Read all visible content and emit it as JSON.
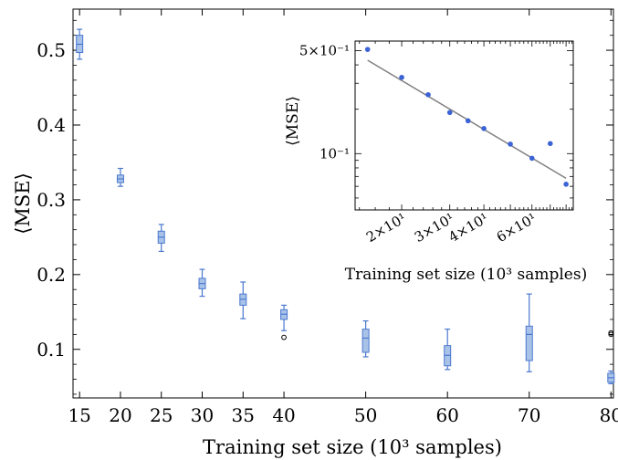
{
  "chart_data": [
    {
      "type": "box",
      "xlabel": "Training set size (10³ samples)",
      "ylabel": "⟨MSE⟩",
      "xlim": [
        14.2,
        80.3
      ],
      "ylim": [
        0.035,
        0.555
      ],
      "x_ticks": [
        15,
        20,
        25,
        30,
        35,
        40,
        50,
        60,
        70,
        80
      ],
      "y_ticks": [
        0.1,
        0.2,
        0.3,
        0.4,
        0.5
      ],
      "y_tick_labels": [
        "0.1",
        "0.2",
        "0.3",
        "0.4",
        "0.5"
      ],
      "box_color": "#a9c3e8",
      "edge_color": "#4a78cf",
      "boxes": [
        {
          "x": 15,
          "whisker_low": 0.488,
          "q1": 0.497,
          "median": 0.508,
          "q3": 0.52,
          "whisker_high": 0.528,
          "outliers": []
        },
        {
          "x": 20,
          "whisker_low": 0.318,
          "q1": 0.323,
          "median": 0.328,
          "q3": 0.333,
          "whisker_high": 0.342,
          "outliers": []
        },
        {
          "x": 25,
          "whisker_low": 0.231,
          "q1": 0.242,
          "median": 0.25,
          "q3": 0.258,
          "whisker_high": 0.267,
          "outliers": []
        },
        {
          "x": 30,
          "whisker_low": 0.171,
          "q1": 0.181,
          "median": 0.188,
          "q3": 0.195,
          "whisker_high": 0.207,
          "outliers": []
        },
        {
          "x": 35,
          "whisker_low": 0.141,
          "q1": 0.159,
          "median": 0.167,
          "q3": 0.174,
          "whisker_high": 0.19,
          "outliers": []
        },
        {
          "x": 40,
          "whisker_low": 0.125,
          "q1": 0.14,
          "median": 0.147,
          "q3": 0.153,
          "whisker_high": 0.159,
          "outliers": [
            0.116
          ]
        },
        {
          "x": 50,
          "whisker_low": 0.09,
          "q1": 0.096,
          "median": 0.115,
          "q3": 0.127,
          "whisker_high": 0.138,
          "outliers": []
        },
        {
          "x": 60,
          "whisker_low": 0.073,
          "q1": 0.078,
          "median": 0.092,
          "q3": 0.105,
          "whisker_high": 0.127,
          "outliers": []
        },
        {
          "x": 70,
          "whisker_low": 0.07,
          "q1": 0.085,
          "median": 0.12,
          "q3": 0.131,
          "whisker_high": 0.174,
          "outliers": []
        },
        {
          "x": 80,
          "whisker_low": 0.054,
          "q1": 0.056,
          "median": 0.062,
          "q3": 0.068,
          "whisker_high": 0.071,
          "outliers": [
            0.12,
            0.122
          ]
        }
      ]
    },
    {
      "type": "scatter",
      "inset": true,
      "xscale": "log",
      "yscale": "log",
      "xlabel": "Training set size (10³ samples)",
      "ylabel": "⟨MSE⟩",
      "xlim": [
        13.5,
        85
      ],
      "ylim": [
        0.0415,
        0.58
      ],
      "x_tick_labels": [
        {
          "value": 20,
          "label": "2×10¹"
        },
        {
          "value": 30,
          "label": "3×10¹"
        },
        {
          "value": 40,
          "label": "4×10¹"
        },
        {
          "value": 60,
          "label": "6×10¹"
        }
      ],
      "y_tick_labels": [
        {
          "value": 0.5,
          "label": "5×10⁻¹"
        },
        {
          "value": 0.1,
          "label": "10⁻¹"
        }
      ],
      "point_color": "#3b63d6",
      "fit_color": "#808080",
      "points": [
        {
          "x": 15,
          "y": 0.509
        },
        {
          "x": 20,
          "y": 0.329
        },
        {
          "x": 25,
          "y": 0.251
        },
        {
          "x": 30,
          "y": 0.19
        },
        {
          "x": 35,
          "y": 0.167
        },
        {
          "x": 40,
          "y": 0.148
        },
        {
          "x": 50,
          "y": 0.116
        },
        {
          "x": 60,
          "y": 0.093
        },
        {
          "x": 70,
          "y": 0.117
        },
        {
          "x": 80,
          "y": 0.062
        }
      ],
      "fit_line": {
        "x": [
          15,
          80
        ],
        "y": [
          0.43,
          0.068
        ]
      }
    }
  ]
}
